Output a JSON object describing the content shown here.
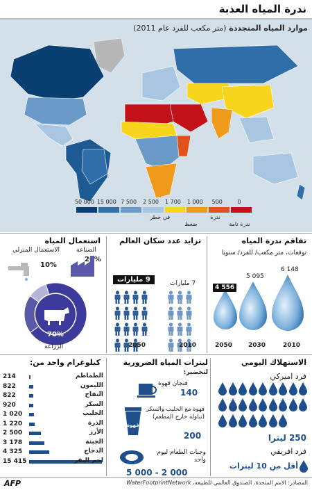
{
  "title": "ندرة المياه العذبة",
  "map": {
    "title": "موارد المياه المتجددة",
    "subtitle": "(متر مكعب  للفرد عام 2011)",
    "legend": {
      "values": [
        "50 000",
        "15 000",
        "7 500",
        "2 500",
        "1 700",
        "1 000",
        "500",
        "0"
      ],
      "categories": [
        "في خطر",
        "ضغط",
        "ندرة",
        "ندرة تامة"
      ],
      "colors": [
        "#0a3f73",
        "#2f6ea8",
        "#6a9bc8",
        "#a8c5e2",
        "#f7d51d",
        "#ef9a1b",
        "#e0541b",
        "#c3111a"
      ]
    }
  },
  "scarcity": {
    "title": "تفاقم ندرة المياه",
    "subtitle": "توقعات، متر مكعب/ للفرد/ سنويا",
    "values": [
      "6 148",
      "5 095",
      "4 556"
    ],
    "years": [
      "2010",
      "2030",
      "2050"
    ]
  },
  "population": {
    "title": "تزايد عدد سكان العالم",
    "label_2010": "7 مليارات",
    "label_2050": "9 مليارات",
    "years": [
      "2010",
      "2050"
    ]
  },
  "usage": {
    "title": "استعمال المياه",
    "domestic_label": "الاستعمال المنزلي",
    "domestic_pct": "10%",
    "industry_label": "الصناعة",
    "industry_pct": "20%",
    "agriculture_pct": "70%",
    "agriculture_label": "الزراعة",
    "fractions": [
      0.7,
      0.2,
      0.1
    ]
  },
  "daily": {
    "title": "الاستهلاك اليومي",
    "american_label": "فرد اميركي",
    "american_value": "250 ليترا",
    "african_label": "فرد افريقي",
    "african_value": "أقل من 10 ليترات",
    "american_drops": 25
  },
  "liters": {
    "title": "ليترات المياه الضرورية",
    "subtitle": "لتحضير:",
    "coffee_label": "فنجان قهوة",
    "coffee_value": "140",
    "milk_coffee_label": "قهوة مع الحليب والسكر (تناوله خارج المطعم)",
    "milk_coffee_value": "200",
    "cup_text": "قهوة",
    "meals_label": "وجبات الطعام ليوم واحد",
    "meals_value": "5 000 - 2 000"
  },
  "kilo": {
    "title": "كيلوغرام واحد من:",
    "items": [
      {
        "name": "الطماطم",
        "value": "214",
        "amount": 214
      },
      {
        "name": "الليمون",
        "value": "822",
        "amount": 822
      },
      {
        "name": "التفاح",
        "value": "822",
        "amount": 822
      },
      {
        "name": "السكر",
        "value": "920",
        "amount": 920
      },
      {
        "name": "الحليب",
        "value": "1 020",
        "amount": 1020
      },
      {
        "name": "الذرة",
        "value": "1 220",
        "amount": 1220
      },
      {
        "name": "الأرز",
        "value": "2 500",
        "amount": 2500
      },
      {
        "name": "الجبنة",
        "value": "3 178",
        "amount": 3178
      },
      {
        "name": "الدجاج",
        "value": "4 325",
        "amount": 4325
      },
      {
        "name": "لحم البقر",
        "value": "15 415",
        "amount": 15415
      }
    ]
  },
  "footer": {
    "source": "المصادر: الامم المتحدة، الصندوق العالمي للطبيعة،",
    "source_network": "WaterFootprintNetwork",
    "logo": "AFP"
  }
}
